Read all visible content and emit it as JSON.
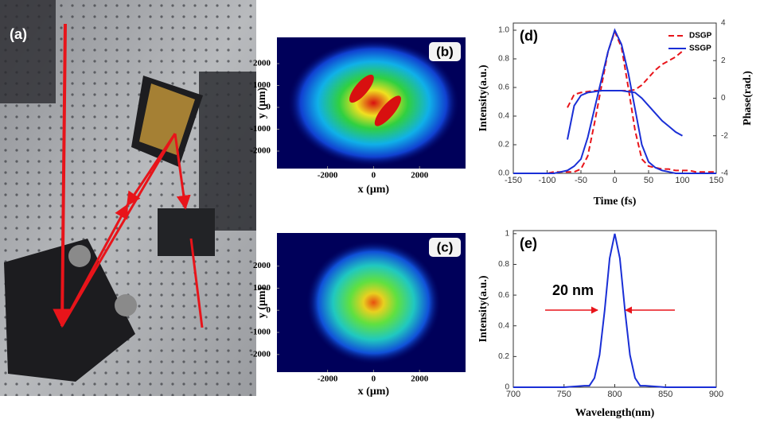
{
  "panel_a": {
    "label": "(a)"
  },
  "chart_data": [
    {
      "type": "image",
      "label": "(b)",
      "xlabel": "x (μm)",
      "ylabel": "y (μm)",
      "xlim": [
        -4200,
        4000
      ],
      "ylim": [
        -2800,
        3200
      ],
      "xticks": [
        -2000,
        0,
        2000
      ],
      "yticks": [
        2000,
        1000,
        0,
        -1000,
        -2000
      ]
    },
    {
      "type": "image",
      "label": "(c)",
      "xlabel": "x (μm)",
      "ylabel": "y (μm)",
      "xlim": [
        -4200,
        4000
      ],
      "ylim": [
        -2800,
        3500
      ],
      "xticks": [
        -2000,
        0,
        2000
      ],
      "yticks": [
        2000,
        1000,
        0,
        -1000,
        -2000
      ]
    },
    {
      "type": "line",
      "label": "(d)",
      "xlabel": "Time (fs)",
      "ylabel": "Intensity(a.u.)",
      "y2label": "Phase(rad.)",
      "legend": "upper right",
      "xlim": [
        -150,
        150
      ],
      "xticks": [
        -150,
        -100,
        -50,
        0,
        50,
        100,
        150
      ],
      "ylim": [
        0,
        1.05
      ],
      "yticks": [
        {
          "value": 0,
          "label": "0.0"
        },
        0.2,
        0.4,
        0.6,
        0.8,
        {
          "value": 1,
          "label": "1.0"
        }
      ],
      "y2lim": [
        -4,
        4
      ],
      "y2ticks": [
        -4,
        -2,
        0,
        2,
        4
      ],
      "x": [
        -150,
        -140,
        -130,
        -120,
        -110,
        -100,
        -90,
        -80,
        -70,
        -60,
        -50,
        -40,
        -30,
        -20,
        -10,
        0,
        10,
        20,
        30,
        40,
        50,
        60,
        70,
        80,
        90,
        100,
        110,
        120,
        130,
        140,
        150
      ],
      "series": [
        {
          "name": "DSGP",
          "color": "#e8141a",
          "linestyle": "dashed",
          "values": [
            0,
            0,
            0,
            0,
            0,
            0,
            0.01,
            0.01,
            0.01,
            0.01,
            0.03,
            0.12,
            0.35,
            0.6,
            0.85,
            0.99,
            0.88,
            0.6,
            0.3,
            0.1,
            0.05,
            0.04,
            0.03,
            0.03,
            0.02,
            0.02,
            0.02,
            0.01,
            0.01,
            0.01,
            0.01
          ],
          "phase": [
            null,
            null,
            null,
            null,
            null,
            null,
            null,
            null,
            -0.5,
            0.2,
            0.3,
            0.35,
            0.4,
            0.4,
            0.4,
            0.4,
            0.4,
            0.4,
            0.45,
            0.7,
            1.1,
            1.5,
            1.8,
            2.0,
            2.2,
            2.5,
            null,
            null,
            null,
            null,
            null
          ]
        },
        {
          "name": "SSGP",
          "color": "#1a2fd6",
          "linestyle": "solid",
          "values": [
            0,
            0,
            0,
            0,
            0,
            0,
            0,
            0.01,
            0.02,
            0.05,
            0.1,
            0.25,
            0.45,
            0.65,
            0.85,
            1.0,
            0.9,
            0.7,
            0.45,
            0.2,
            0.08,
            0.04,
            0.02,
            0.01,
            0,
            0,
            0,
            0,
            0,
            0,
            0
          ],
          "phase": [
            null,
            null,
            null,
            null,
            null,
            null,
            null,
            null,
            -2.2,
            -0.4,
            0.15,
            0.3,
            0.35,
            0.4,
            0.4,
            0.4,
            0.4,
            0.35,
            0.3,
            0.0,
            -0.4,
            -0.8,
            -1.2,
            -1.5,
            -1.8,
            -2.0,
            null,
            null,
            null,
            null,
            null
          ]
        }
      ]
    },
    {
      "type": "line",
      "label": "(e)",
      "xlabel": "Wavelength(nm)",
      "ylabel": "Intensity(a.u.)",
      "xlim": [
        700,
        900
      ],
      "xticks": [
        700,
        750,
        800,
        850,
        900
      ],
      "ylim": [
        0,
        1.02
      ],
      "yticks": [
        0,
        0.2,
        0.4,
        0.6,
        0.8,
        1
      ],
      "x": [
        700,
        750,
        770,
        775,
        780,
        785,
        790,
        795,
        800,
        805,
        810,
        815,
        820,
        825,
        830,
        850,
        900
      ],
      "series": [
        {
          "color": "#1a2fd6",
          "linestyle": "solid",
          "values": [
            0,
            0,
            0.01,
            0.01,
            0.06,
            0.21,
            0.5,
            0.84,
            1,
            0.84,
            0.5,
            0.21,
            0.06,
            0.01,
            0.01,
            0,
            0
          ]
        }
      ],
      "annotations": [
        {
          "text": "20 nm"
        }
      ]
    }
  ]
}
